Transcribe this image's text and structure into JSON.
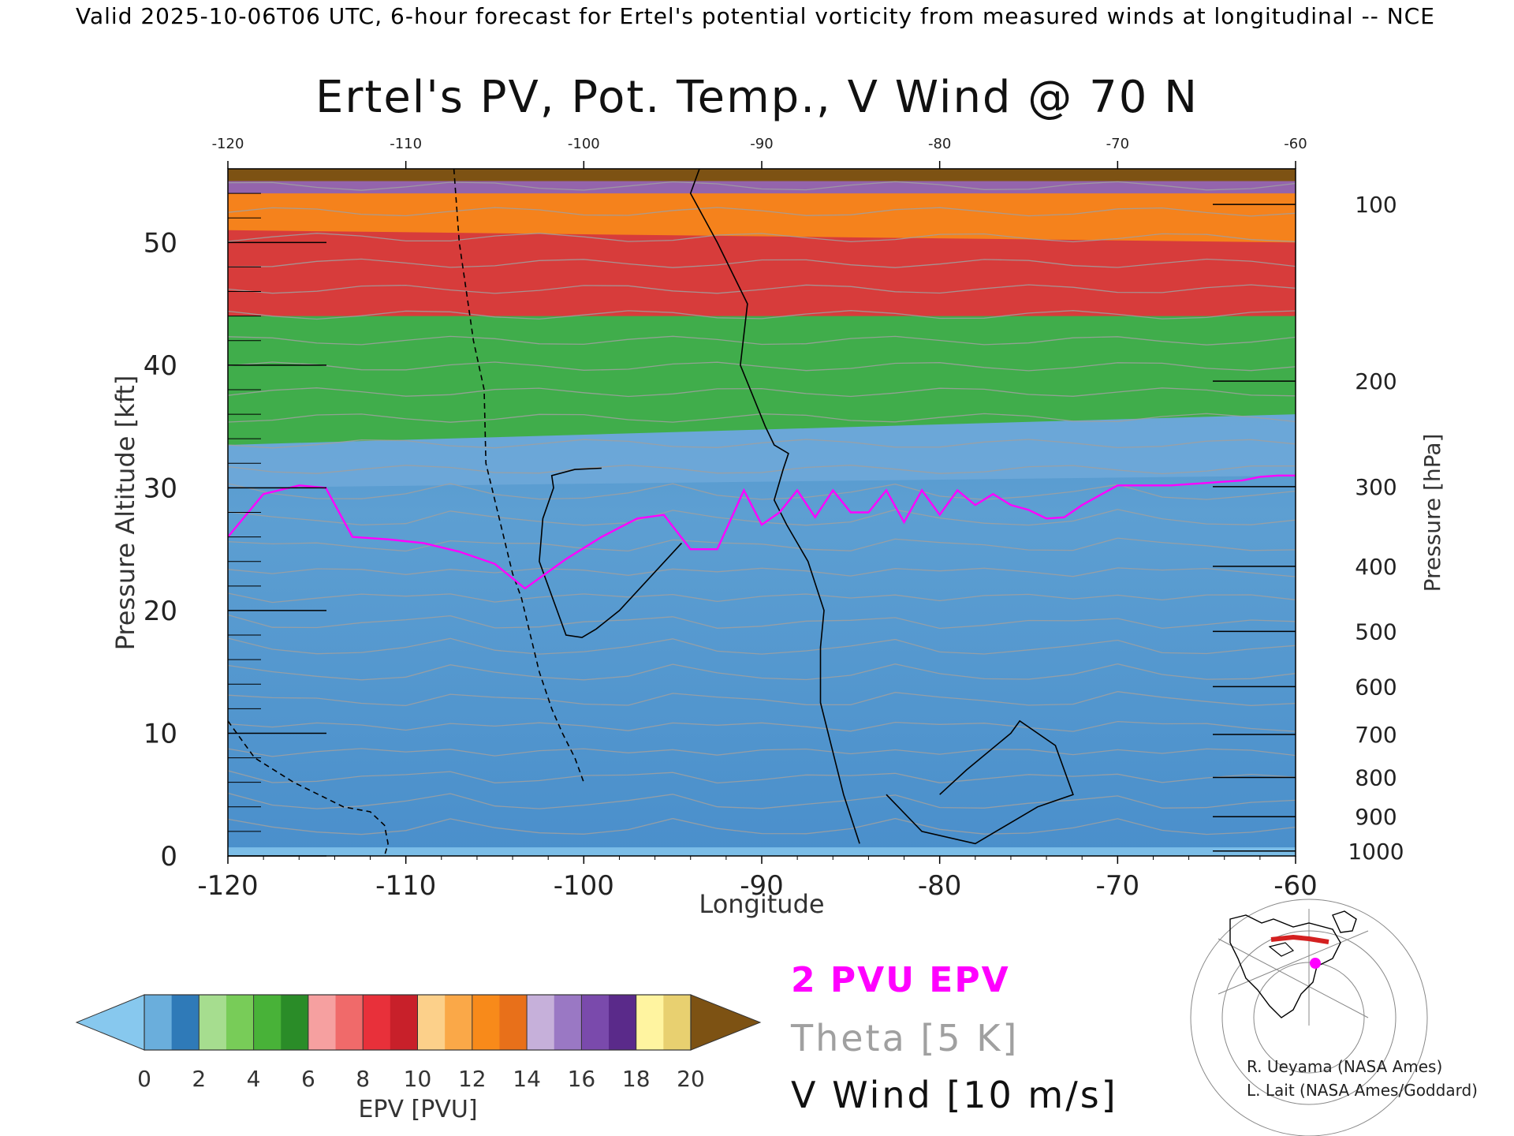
{
  "header": {
    "valid_line": "Valid 2025-10-06T06 UTC, 6-hour forecast for Ertel's potential vorticity from measured winds at longitudinal -- NCE"
  },
  "chart_data": {
    "type": "heatmap",
    "title": "Ertel's PV, Pot. Temp., V Wind @ 70 N",
    "xlabel": "Longitude",
    "ylabel": "Pressure Altitude [kft]",
    "y2label": "Pressure [hPa]",
    "xlim": [
      -120,
      -60
    ],
    "ylim": [
      0,
      56
    ],
    "x_ticks": [
      "-120",
      "-110",
      "-100",
      "-90",
      "-80",
      "-70",
      "-60"
    ],
    "x_tick_values": [
      -120,
      -110,
      -100,
      -90,
      -80,
      -70,
      -60
    ],
    "y_ticks": [
      "0",
      "10",
      "20",
      "30",
      "40",
      "50"
    ],
    "y_tick_values": [
      0,
      10,
      20,
      30,
      40,
      50
    ],
    "pressure_ticks": [
      {
        "label": "100",
        "kft": 53.1
      },
      {
        "label": "200",
        "kft": 38.7
      },
      {
        "label": "300",
        "kft": 30.1
      },
      {
        "label": "400",
        "kft": 23.6
      },
      {
        "label": "500",
        "kft": 18.3
      },
      {
        "label": "600",
        "kft": 13.8
      },
      {
        "label": "700",
        "kft": 9.9
      },
      {
        "label": "800",
        "kft": 6.4
      },
      {
        "label": "900",
        "kft": 3.2
      },
      {
        "label": "1000",
        "kft": 0.4
      }
    ],
    "pv2_line": {
      "name": "2 PVU EPV",
      "color": "#ff00ff",
      "x": [
        -120,
        -118,
        -116,
        -114.5,
        -113,
        -111,
        -109,
        -107,
        -105,
        -103.3,
        -101,
        -99,
        -97,
        -95.5,
        -94,
        -92.5,
        -91,
        -90,
        -89,
        -88,
        -87,
        -86,
        -85,
        -84,
        -83,
        -82,
        -81,
        -80,
        -79,
        -78,
        -77,
        -76,
        -75,
        -74,
        -73,
        -72,
        -71,
        -70,
        -69,
        -68,
        -67,
        -66,
        -65,
        -64,
        -63,
        -62,
        -61,
        -60
      ],
      "y": [
        26,
        29.5,
        30.2,
        30,
        26,
        25.8,
        25.5,
        24.8,
        23.8,
        21.8,
        24.2,
        26,
        27.5,
        27.8,
        25,
        25,
        29.8,
        27,
        28,
        29.8,
        27.6,
        29.8,
        28,
        28,
        29.8,
        27.2,
        29.8,
        27.8,
        29.8,
        28.6,
        29.5,
        28.6,
        28.2,
        27.5,
        27.6,
        28.6,
        29.4,
        30.2,
        30.2,
        30.2,
        30.2,
        30.3,
        30.4,
        30.5,
        30.6,
        30.9,
        31.0,
        31.0
      ]
    },
    "theta_isentropes": {
      "name": "Theta [5 K]",
      "color": "#a0a0a0",
      "interval": 5
    },
    "v_wind_contours": {
      "name": "V Wind [10 m/s]",
      "color": "#000000",
      "interval": 10,
      "lines": [
        {
          "value": 0,
          "style": "solid",
          "x": [
            -93.5,
            -94,
            -92.5,
            -90.8,
            -91.2,
            -90.5,
            -89.8,
            -89.3,
            -88.5,
            -88.8,
            -89,
            -89.3,
            -88.6,
            -87.4,
            -86.5,
            -86.7,
            -86.7,
            -85.4,
            -84.5
          ],
          "y": [
            56,
            54,
            50,
            45,
            40,
            37.5,
            35,
            33.5,
            32.8,
            31.5,
            30.5,
            29,
            27,
            24,
            20,
            17,
            12.5,
            5,
            1
          ]
        },
        {
          "value": 0,
          "style": "solid",
          "x": [
            -94.5,
            -98,
            -99.3,
            -100.1,
            -101,
            -101.5,
            -102.5,
            -102.3,
            -101.7,
            -101.8,
            -100.5,
            -99
          ],
          "y": [
            25.5,
            20,
            18.5,
            17.8,
            18,
            20,
            24,
            27.5,
            30,
            31,
            31.5,
            31.6
          ]
        },
        {
          "value": 10,
          "style": "dashed",
          "x": [
            -107.3,
            -107,
            -106.5,
            -106.2,
            -105.6,
            -105.5,
            -105,
            -104.5,
            -104,
            -103.5,
            -103,
            -102.5,
            -101.8,
            -101.2,
            -100.5,
            -100
          ],
          "y": [
            56,
            50,
            45,
            42,
            38,
            32,
            29,
            26,
            23,
            21,
            18,
            15,
            12,
            10,
            8,
            6
          ]
        },
        {
          "value": -10,
          "style": "dashed",
          "x": [
            -120,
            -118.5,
            -116.3,
            -113.5,
            -112,
            -111.2,
            -111,
            -111.2
          ],
          "y": [
            11,
            8,
            6,
            4,
            3.6,
            2.5,
            1,
            0
          ]
        },
        {
          "value": 10,
          "style": "solid",
          "x": [
            -80,
            -78.5,
            -76,
            -75.5,
            -73.5,
            -72.5,
            -74.5,
            -78,
            -81,
            -83
          ],
          "y": [
            5,
            7,
            10,
            11,
            9,
            5,
            4,
            1,
            2,
            5
          ]
        }
      ]
    },
    "colorbar": {
      "label": "EPV [PVU]",
      "ticks": [
        "0",
        "2",
        "4",
        "6",
        "8",
        "10",
        "12",
        "14",
        "16",
        "18",
        "20"
      ],
      "tick_values": [
        0,
        2,
        4,
        6,
        8,
        10,
        12,
        14,
        16,
        18,
        20
      ],
      "under_color": "#87c8ee",
      "over_color": "#7d5213",
      "segments": [
        {
          "from": 0,
          "to": 1,
          "color": "#6aaedc"
        },
        {
          "from": 1,
          "to": 2,
          "color": "#2f7ab8"
        },
        {
          "from": 2,
          "to": 3,
          "color": "#a6dd8f"
        },
        {
          "from": 3,
          "to": 4,
          "color": "#78cc58"
        },
        {
          "from": 4,
          "to": 5,
          "color": "#48b238"
        },
        {
          "from": 5,
          "to": 6,
          "color": "#2a8c28"
        },
        {
          "from": 6,
          "to": 7,
          "color": "#f6a0a0"
        },
        {
          "from": 7,
          "to": 8,
          "color": "#f06a6a"
        },
        {
          "from": 8,
          "to": 9,
          "color": "#e8303a"
        },
        {
          "from": 9,
          "to": 10,
          "color": "#c8202a"
        },
        {
          "from": 10,
          "to": 11,
          "color": "#fcd08a"
        },
        {
          "from": 11,
          "to": 12,
          "color": "#faa848"
        },
        {
          "from": 12,
          "to": 13,
          "color": "#f88a1a"
        },
        {
          "from": 13,
          "to": 14,
          "color": "#e8701a"
        },
        {
          "from": 14,
          "to": 15,
          "color": "#c6b0da"
        },
        {
          "from": 15,
          "to": 16,
          "color": "#9a78c4"
        },
        {
          "from": 16,
          "to": 17,
          "color": "#7a4aac"
        },
        {
          "from": 17,
          "to": 18,
          "color": "#5a2a8a"
        },
        {
          "from": 18,
          "to": 19,
          "color": "#fff4a0"
        },
        {
          "from": 19,
          "to": 20,
          "color": "#e8d070"
        }
      ]
    },
    "field_bands": [
      {
        "color": "#6ea8d8",
        "x": [
          -120,
          -60
        ],
        "top": [
          30,
          31
        ]
      },
      {
        "color": "#3cae3c",
        "x": [
          -120,
          -60
        ],
        "top": [
          33.5,
          36
        ]
      },
      {
        "color": "#e8303a",
        "x": [
          -120,
          -60
        ],
        "top": [
          44,
          44
        ]
      },
      {
        "color": "#f88a1a",
        "x": [
          -120,
          -60
        ],
        "top": [
          51,
          50
        ]
      },
      {
        "color": "#8a60bc",
        "x": [
          -120,
          -60
        ],
        "top": [
          54,
          54
        ]
      }
    ]
  },
  "legend": {
    "pv": {
      "text": "2 PVU EPV",
      "color": "#ff00ff"
    },
    "theta": {
      "text": "Theta [5 K]",
      "color": "#a0a0a0"
    },
    "wind": {
      "text": "V Wind [10 m/s]",
      "color": "#000000"
    }
  },
  "credits": [
    "R. Ueyama (NASA Ames)",
    "L. Lait (NASA Ames/Goddard)"
  ]
}
